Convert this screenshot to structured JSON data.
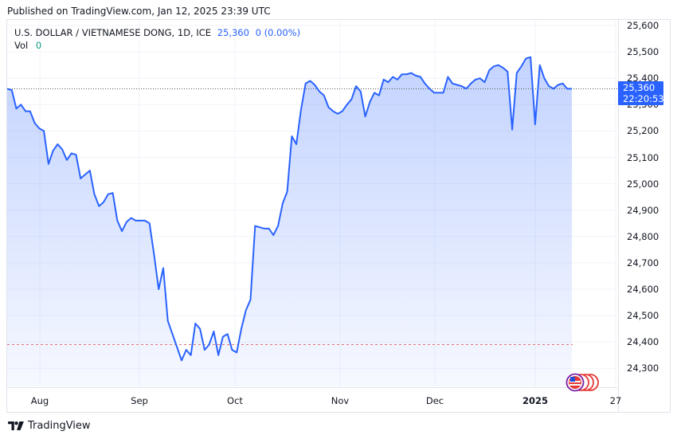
{
  "header": {
    "published": "Published on TradingView.com, Jan 12, 2025 23:39 UTC"
  },
  "legend": {
    "symbol": "U.S. DOLLAR / VIETNAMESE DONG, 1D, ICE",
    "last_price": "25,360",
    "change": "0 (0.00%)",
    "volume_label": "Vol",
    "volume_value": "0"
  },
  "price_label": {
    "price": "25,360",
    "countdown": "22:20:53"
  },
  "price_axis": {
    "ticks": [
      "25,600",
      "25,500",
      "25,400",
      "25,300",
      "25,200",
      "25,100",
      "25,000",
      "24,900",
      "24,800",
      "24,700",
      "24,600",
      "24,500",
      "24,400",
      "24,300"
    ]
  },
  "time_axis": {
    "ticks": [
      "Aug",
      "Sep",
      "Oct",
      "Nov",
      "Dec",
      "2025",
      "27"
    ]
  },
  "footer": {
    "brand": "TradingView"
  },
  "colors": {
    "line": "#2962ff",
    "price_label_bg": "#2962ff",
    "volume_value": "#089981",
    "grid": "#f0f3fa",
    "low_line": "#e57373"
  },
  "icons": {
    "event_flags": "us-flag-event-icons",
    "logo": "tradingview-logo-icon"
  },
  "chart_data": {
    "type": "area",
    "title": "U.S. DOLLAR / VIETNAMESE DONG, 1D, ICE",
    "xlabel": "",
    "ylabel": "",
    "ylim": [
      24250,
      25650
    ],
    "grid": true,
    "legend_position": "top-left",
    "x_ticks": [
      "Aug",
      "Sep",
      "Oct",
      "Nov",
      "Dec",
      "2025",
      "27"
    ],
    "y_ticks": [
      24300,
      24400,
      24500,
      24600,
      24700,
      24800,
      24900,
      25000,
      25100,
      25200,
      25300,
      25400,
      25500,
      25600
    ],
    "current_price": 25360,
    "reference_low_line": 24390,
    "series": [
      {
        "name": "USD/VND close",
        "values": [
          {
            "x": "Jul 23",
            "y": 25360
          },
          {
            "x": "Jul 24",
            "y": 25355
          },
          {
            "x": "Jul 25",
            "y": 25285
          },
          {
            "x": "Jul 26",
            "y": 25300
          },
          {
            "x": "Jul 29",
            "y": 25275
          },
          {
            "x": "Jul 30",
            "y": 25275
          },
          {
            "x": "Jul 31",
            "y": 25230
          },
          {
            "x": "Aug 1",
            "y": 25210
          },
          {
            "x": "Aug 2",
            "y": 25200
          },
          {
            "x": "Aug 5",
            "y": 25075
          },
          {
            "x": "Aug 6",
            "y": 25125
          },
          {
            "x": "Aug 7",
            "y": 25150
          },
          {
            "x": "Aug 8",
            "y": 25130
          },
          {
            "x": "Aug 9",
            "y": 25090
          },
          {
            "x": "Aug 12",
            "y": 25115
          },
          {
            "x": "Aug 13",
            "y": 25110
          },
          {
            "x": "Aug 14",
            "y": 25020
          },
          {
            "x": "Aug 15",
            "y": 25035
          },
          {
            "x": "Aug 16",
            "y": 25050
          },
          {
            "x": "Aug 19",
            "y": 24960
          },
          {
            "x": "Aug 20",
            "y": 24915
          },
          {
            "x": "Aug 21",
            "y": 24930
          },
          {
            "x": "Aug 22",
            "y": 24960
          },
          {
            "x": "Aug 23",
            "y": 24965
          },
          {
            "x": "Aug 26",
            "y": 24860
          },
          {
            "x": "Aug 27",
            "y": 24820
          },
          {
            "x": "Aug 28",
            "y": 24855
          },
          {
            "x": "Aug 29",
            "y": 24870
          },
          {
            "x": "Aug 30",
            "y": 24860
          },
          {
            "x": "Sep 3",
            "y": 24860
          },
          {
            "x": "Sep 4",
            "y": 24860
          },
          {
            "x": "Sep 5",
            "y": 24850
          },
          {
            "x": "Sep 6",
            "y": 24730
          },
          {
            "x": "Sep 9",
            "y": 24600
          },
          {
            "x": "Sep 10",
            "y": 24680
          },
          {
            "x": "Sep 11",
            "y": 24480
          },
          {
            "x": "Sep 12",
            "y": 24430
          },
          {
            "x": "Sep 13",
            "y": 24380
          },
          {
            "x": "Sep 16",
            "y": 24330
          },
          {
            "x": "Sep 17",
            "y": 24370
          },
          {
            "x": "Sep 18",
            "y": 24350
          },
          {
            "x": "Sep 19",
            "y": 24470
          },
          {
            "x": "Sep 20",
            "y": 24450
          },
          {
            "x": "Sep 23",
            "y": 24370
          },
          {
            "x": "Sep 24",
            "y": 24390
          },
          {
            "x": "Sep 25",
            "y": 24440
          },
          {
            "x": "Sep 26",
            "y": 24350
          },
          {
            "x": "Sep 27",
            "y": 24420
          },
          {
            "x": "Sep 30",
            "y": 24430
          },
          {
            "x": "Oct 1",
            "y": 24370
          },
          {
            "x": "Oct 2",
            "y": 24360
          },
          {
            "x": "Oct 3",
            "y": 24450
          },
          {
            "x": "Oct 4",
            "y": 24520
          },
          {
            "x": "Oct 7",
            "y": 24560
          },
          {
            "x": "Oct 8",
            "y": 24840
          },
          {
            "x": "Oct 9",
            "y": 24835
          },
          {
            "x": "Oct 10",
            "y": 24830
          },
          {
            "x": "Oct 11",
            "y": 24830
          },
          {
            "x": "Oct 14",
            "y": 24805
          },
          {
            "x": "Oct 15",
            "y": 24840
          },
          {
            "x": "Oct 16",
            "y": 24925
          },
          {
            "x": "Oct 17",
            "y": 24970
          },
          {
            "x": "Oct 18",
            "y": 25180
          },
          {
            "x": "Oct 21",
            "y": 25150
          },
          {
            "x": "Oct 22",
            "y": 25280
          },
          {
            "x": "Oct 23",
            "y": 25380
          },
          {
            "x": "Oct 24",
            "y": 25390
          },
          {
            "x": "Oct 25",
            "y": 25375
          },
          {
            "x": "Oct 28",
            "y": 25350
          },
          {
            "x": "Oct 29",
            "y": 25335
          },
          {
            "x": "Oct 30",
            "y": 25290
          },
          {
            "x": "Oct 31",
            "y": 25275
          },
          {
            "x": "Nov 1",
            "y": 25265
          },
          {
            "x": "Nov 4",
            "y": 25275
          },
          {
            "x": "Nov 5",
            "y": 25300
          },
          {
            "x": "Nov 6",
            "y": 25320
          },
          {
            "x": "Nov 7",
            "y": 25370
          },
          {
            "x": "Nov 8",
            "y": 25350
          },
          {
            "x": "Nov 11",
            "y": 25255
          },
          {
            "x": "Nov 12",
            "y": 25310
          },
          {
            "x": "Nov 13",
            "y": 25345
          },
          {
            "x": "Nov 14",
            "y": 25335
          },
          {
            "x": "Nov 15",
            "y": 25395
          },
          {
            "x": "Nov 18",
            "y": 25385
          },
          {
            "x": "Nov 19",
            "y": 25405
          },
          {
            "x": "Nov 20",
            "y": 25395
          },
          {
            "x": "Nov 21",
            "y": 25415
          },
          {
            "x": "Nov 22",
            "y": 25415
          },
          {
            "x": "Nov 25",
            "y": 25420
          },
          {
            "x": "Nov 26",
            "y": 25410
          },
          {
            "x": "Nov 27",
            "y": 25405
          },
          {
            "x": "Nov 28",
            "y": 25380
          },
          {
            "x": "Nov 29",
            "y": 25360
          },
          {
            "x": "Dec 2",
            "y": 25345
          },
          {
            "x": "Dec 3",
            "y": 25345
          },
          {
            "x": "Dec 4",
            "y": 25345
          },
          {
            "x": "Dec 5",
            "y": 25405
          },
          {
            "x": "Dec 6",
            "y": 25380
          },
          {
            "x": "Dec 9",
            "y": 25375
          },
          {
            "x": "Dec 10",
            "y": 25370
          },
          {
            "x": "Dec 11",
            "y": 25360
          },
          {
            "x": "Dec 12",
            "y": 25380
          },
          {
            "x": "Dec 13",
            "y": 25395
          },
          {
            "x": "Dec 16",
            "y": 25400
          },
          {
            "x": "Dec 17",
            "y": 25385
          },
          {
            "x": "Dec 18",
            "y": 25430
          },
          {
            "x": "Dec 19",
            "y": 25445
          },
          {
            "x": "Dec 20",
            "y": 25450
          },
          {
            "x": "Dec 23",
            "y": 25440
          },
          {
            "x": "Dec 24",
            "y": 25425
          },
          {
            "x": "Dec 26",
            "y": 25205
          },
          {
            "x": "Dec 27",
            "y": 25420
          },
          {
            "x": "Dec 30",
            "y": 25445
          },
          {
            "x": "Dec 31",
            "y": 25475
          },
          {
            "x": "Jan 1",
            "y": 25480
          },
          {
            "x": "Jan 2",
            "y": 25225
          },
          {
            "x": "Jan 3",
            "y": 25450
          },
          {
            "x": "Jan 6",
            "y": 25400
          },
          {
            "x": "Jan 7",
            "y": 25370
          },
          {
            "x": "Jan 8",
            "y": 25360
          },
          {
            "x": "Jan 9",
            "y": 25375
          },
          {
            "x": "Jan 10",
            "y": 25380
          },
          {
            "x": "Jan 11",
            "y": 25360
          },
          {
            "x": "Jan 12",
            "y": 25360
          }
        ]
      }
    ]
  }
}
